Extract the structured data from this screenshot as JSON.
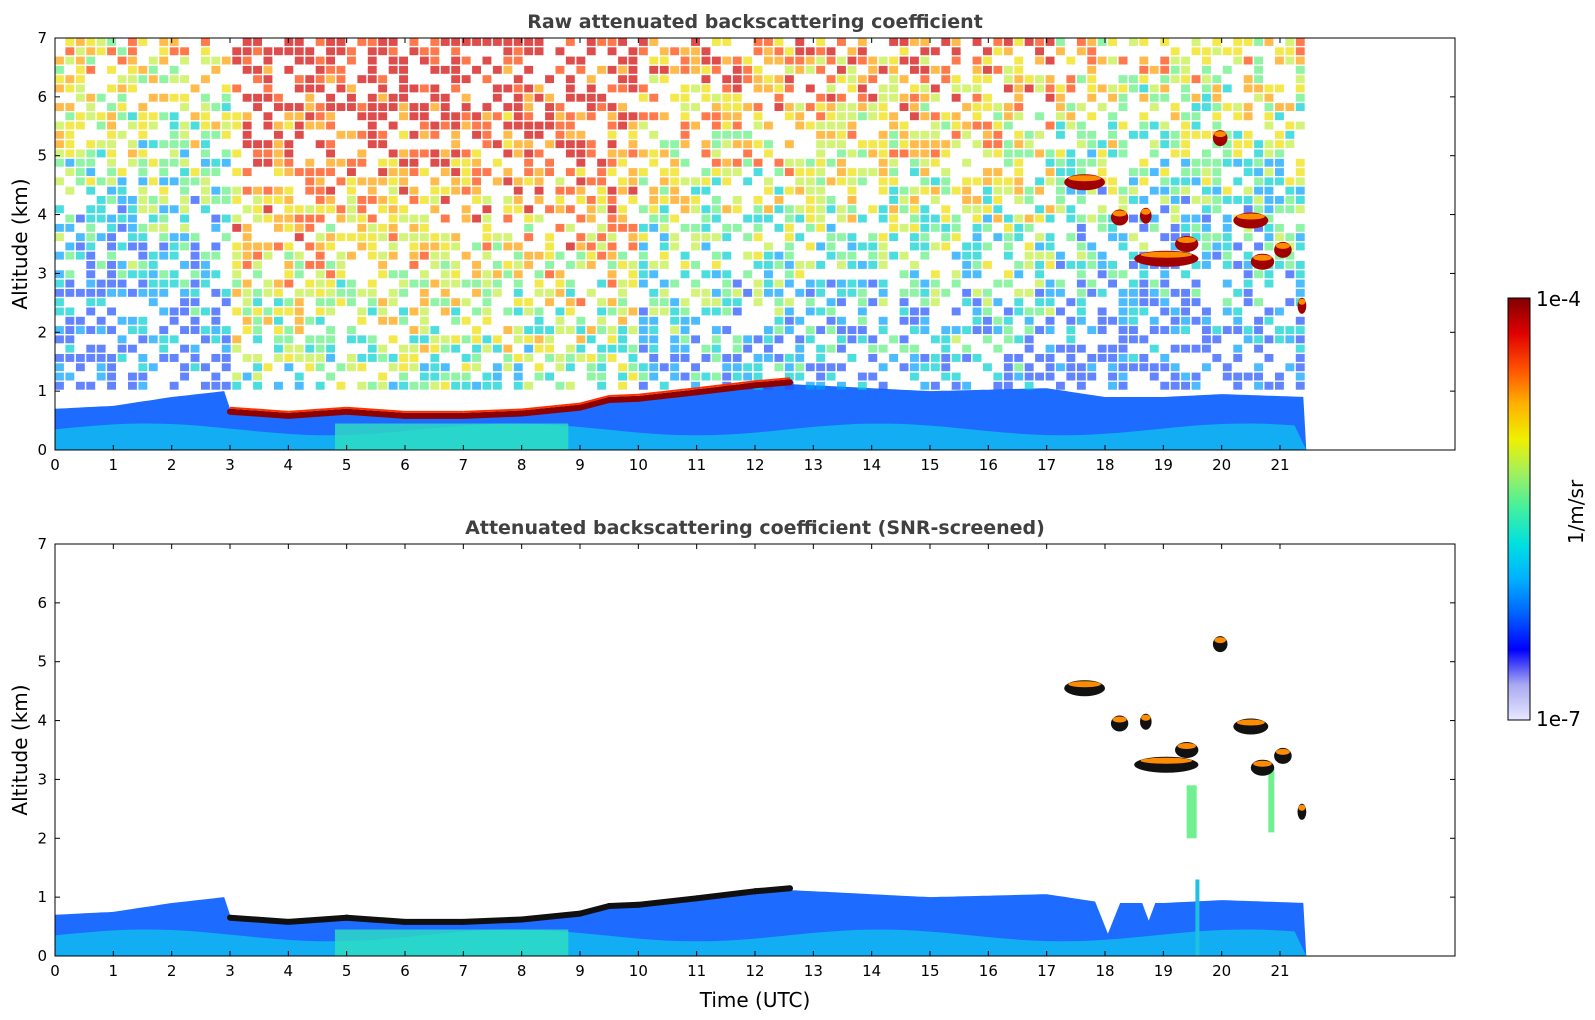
{
  "chart_data": [
    {
      "type": "heatmap",
      "title": "Raw attenuated backscattering coefficient",
      "xlabel": "",
      "ylabel": "Altitude (km)",
      "xlim": [
        0,
        24
      ],
      "ylim": [
        0,
        7
      ],
      "x_ticks": [
        0,
        1,
        2,
        3,
        4,
        5,
        6,
        7,
        8,
        9,
        10,
        11,
        12,
        13,
        14,
        15,
        16,
        17,
        18,
        19,
        20,
        21
      ],
      "y_ticks": [
        0,
        1,
        2,
        3,
        4,
        5,
        6,
        7
      ],
      "data_end_time": 21.45,
      "background_layer": [
        {
          "t": 0,
          "top_km": 0.7
        },
        {
          "t": 1,
          "top_km": 0.75
        },
        {
          "t": 2,
          "top_km": 0.9
        },
        {
          "t": 2.9,
          "top_km": 1.0
        },
        {
          "t": 3.0,
          "top_km": 0.7
        },
        {
          "t": 4,
          "top_km": 0.6
        },
        {
          "t": 5,
          "top_km": 0.7
        },
        {
          "t": 6,
          "top_km": 0.6
        },
        {
          "t": 7,
          "top_km": 0.6
        },
        {
          "t": 8,
          "top_km": 0.65
        },
        {
          "t": 9,
          "top_km": 0.75
        },
        {
          "t": 10,
          "top_km": 0.9
        },
        {
          "t": 11,
          "top_km": 1.0
        },
        {
          "t": 12,
          "top_km": 1.15
        },
        {
          "t": 13,
          "top_km": 1.1
        },
        {
          "t": 15,
          "top_km": 1.0
        },
        {
          "t": 17,
          "top_km": 1.05
        },
        {
          "t": 18,
          "top_km": 0.9
        },
        {
          "t": 19,
          "top_km": 0.9
        },
        {
          "t": 20,
          "top_km": 0.95
        },
        {
          "t": 21.45,
          "top_km": 0.9
        }
      ],
      "strong_layer": [
        {
          "t": 3.0,
          "alt_km": 0.65
        },
        {
          "t": 4.0,
          "alt_km": 0.58
        },
        {
          "t": 5.0,
          "alt_km": 0.65
        },
        {
          "t": 6.0,
          "alt_km": 0.58
        },
        {
          "t": 7.0,
          "alt_km": 0.58
        },
        {
          "t": 8.0,
          "alt_km": 0.62
        },
        {
          "t": 9.0,
          "alt_km": 0.72
        },
        {
          "t": 9.5,
          "alt_km": 0.85
        },
        {
          "t": 10.0,
          "alt_km": 0.87
        },
        {
          "t": 11.0,
          "alt_km": 0.98
        },
        {
          "t": 12.0,
          "alt_km": 1.1
        },
        {
          "t": 12.6,
          "alt_km": 1.15
        }
      ],
      "cloud_patches": [
        {
          "t0": 17.3,
          "t1": 18.0,
          "alt_km": 4.55
        },
        {
          "t0": 18.1,
          "t1": 18.4,
          "alt_km": 3.95
        },
        {
          "t0": 18.6,
          "t1": 18.8,
          "alt_km": 3.98
        },
        {
          "t0": 18.5,
          "t1": 19.6,
          "alt_km": 3.25
        },
        {
          "t0": 19.2,
          "t1": 19.6,
          "alt_km": 3.5
        },
        {
          "t0": 19.85,
          "t1": 20.1,
          "alt_km": 5.3
        },
        {
          "t0": 20.2,
          "t1": 20.8,
          "alt_km": 3.9
        },
        {
          "t0": 20.5,
          "t1": 20.9,
          "alt_km": 3.2
        },
        {
          "t0": 20.9,
          "t1": 21.2,
          "alt_km": 3.4
        },
        {
          "t0": 21.3,
          "t1": 21.45,
          "alt_km": 2.45
        }
      ]
    },
    {
      "type": "heatmap",
      "title": "Attenuated backscattering coefficient (SNR-screened)",
      "xlabel": "Time (UTC)",
      "ylabel": "Altitude (km)",
      "xlim": [
        0,
        24
      ],
      "ylim": [
        0,
        7
      ],
      "x_ticks": [
        0,
        1,
        2,
        3,
        4,
        5,
        6,
        7,
        8,
        9,
        10,
        11,
        12,
        13,
        14,
        15,
        16,
        17,
        18,
        19,
        20,
        21
      ],
      "y_ticks": [
        0,
        1,
        2,
        3,
        4,
        5,
        6,
        7
      ],
      "data_end_time": 21.45
    }
  ],
  "colorbar": {
    "max_label": "1e-4",
    "min_label": "1e-7",
    "unit_label": "1/m/sr",
    "colors": [
      "#e8e8ff",
      "#a9a9f2",
      "#0000ff",
      "#0060ff",
      "#00b0ff",
      "#00e0e0",
      "#40f0a0",
      "#a0f060",
      "#f0f000",
      "#ffb000",
      "#ff5000",
      "#e00000",
      "#800000"
    ]
  }
}
